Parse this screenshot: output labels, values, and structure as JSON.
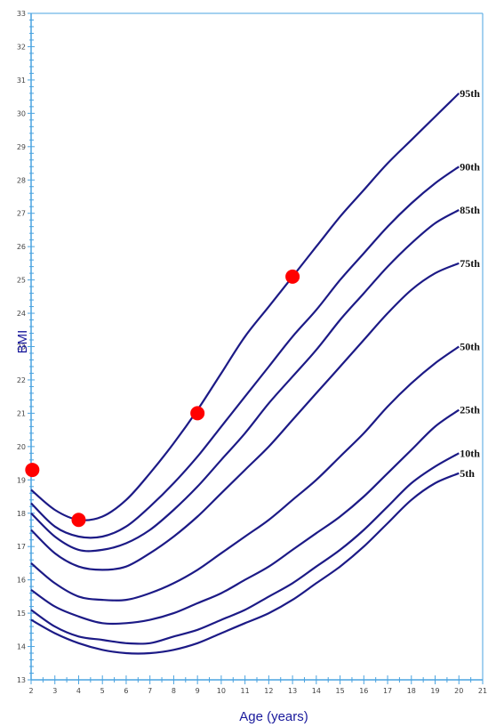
{
  "chart_data": {
    "type": "line",
    "title": "",
    "xlabel": "Age (years)",
    "ylabel": "BMI",
    "xlim": [
      2,
      21
    ],
    "ylim": [
      13,
      33
    ],
    "x_ticks": [
      "2",
      "3",
      "4",
      "5",
      "6",
      "7",
      "8",
      "9",
      "10",
      "11",
      "12",
      "13",
      "14",
      "15",
      "16",
      "17",
      "18",
      "19",
      "20",
      "21"
    ],
    "y_ticks": [
      "13",
      "14",
      "15",
      "16",
      "17",
      "18",
      "19",
      "20",
      "21",
      "22",
      "23",
      "24",
      "25",
      "26",
      "27",
      "28",
      "29",
      "30",
      "31",
      "32",
      "33"
    ],
    "grid": false,
    "colors": {
      "axis": "#4aa3e0",
      "curve": "#1c1a86",
      "point": "#ff0000"
    },
    "x": [
      2,
      3,
      4,
      5,
      6,
      7,
      8,
      9,
      10,
      11,
      12,
      13,
      14,
      15,
      16,
      17,
      18,
      19,
      20
    ],
    "series": [
      {
        "name": "95th",
        "values": [
          18.7,
          18.1,
          17.8,
          17.9,
          18.4,
          19.2,
          20.1,
          21.1,
          22.2,
          23.3,
          24.2,
          25.1,
          26.0,
          26.9,
          27.7,
          28.5,
          29.2,
          29.9,
          30.6
        ]
      },
      {
        "name": "90th",
        "values": [
          18.3,
          17.6,
          17.3,
          17.3,
          17.6,
          18.2,
          18.9,
          19.7,
          20.6,
          21.5,
          22.4,
          23.3,
          24.1,
          25.0,
          25.8,
          26.6,
          27.3,
          27.9,
          28.4
        ]
      },
      {
        "name": "85th",
        "values": [
          18.0,
          17.3,
          16.9,
          16.9,
          17.1,
          17.5,
          18.1,
          18.8,
          19.6,
          20.4,
          21.3,
          22.1,
          22.9,
          23.8,
          24.6,
          25.4,
          26.1,
          26.7,
          27.1
        ]
      },
      {
        "name": "75th",
        "values": [
          17.5,
          16.8,
          16.4,
          16.3,
          16.4,
          16.8,
          17.3,
          17.9,
          18.6,
          19.3,
          20.0,
          20.8,
          21.6,
          22.4,
          23.2,
          24.0,
          24.7,
          25.2,
          25.5
        ]
      },
      {
        "name": "50th",
        "values": [
          16.5,
          15.9,
          15.5,
          15.4,
          15.4,
          15.6,
          15.9,
          16.3,
          16.8,
          17.3,
          17.8,
          18.4,
          19.0,
          19.7,
          20.4,
          21.2,
          21.9,
          22.5,
          23.0
        ]
      },
      {
        "name": "25th",
        "values": [
          15.7,
          15.2,
          14.9,
          14.7,
          14.7,
          14.8,
          15.0,
          15.3,
          15.6,
          16.0,
          16.4,
          16.9,
          17.4,
          17.9,
          18.5,
          19.2,
          19.9,
          20.6,
          21.1
        ]
      },
      {
        "name": "10th",
        "values": [
          15.1,
          14.6,
          14.3,
          14.2,
          14.1,
          14.1,
          14.3,
          14.5,
          14.8,
          15.1,
          15.5,
          15.9,
          16.4,
          16.9,
          17.5,
          18.2,
          18.9,
          19.4,
          19.8
        ]
      },
      {
        "name": "5th",
        "values": [
          14.8,
          14.4,
          14.1,
          13.9,
          13.8,
          13.8,
          13.9,
          14.1,
          14.4,
          14.7,
          15.0,
          15.4,
          15.9,
          16.4,
          17.0,
          17.7,
          18.4,
          18.9,
          19.2
        ]
      }
    ],
    "percentile_labels": [
      "95th",
      "90th",
      "85th",
      "75th",
      "50th",
      "25th",
      "10th",
      "5th"
    ],
    "points": [
      {
        "x": 2.05,
        "y": 19.3
      },
      {
        "x": 4.0,
        "y": 17.8
      },
      {
        "x": 9.0,
        "y": 21.0
      },
      {
        "x": 13.0,
        "y": 25.1
      }
    ]
  }
}
